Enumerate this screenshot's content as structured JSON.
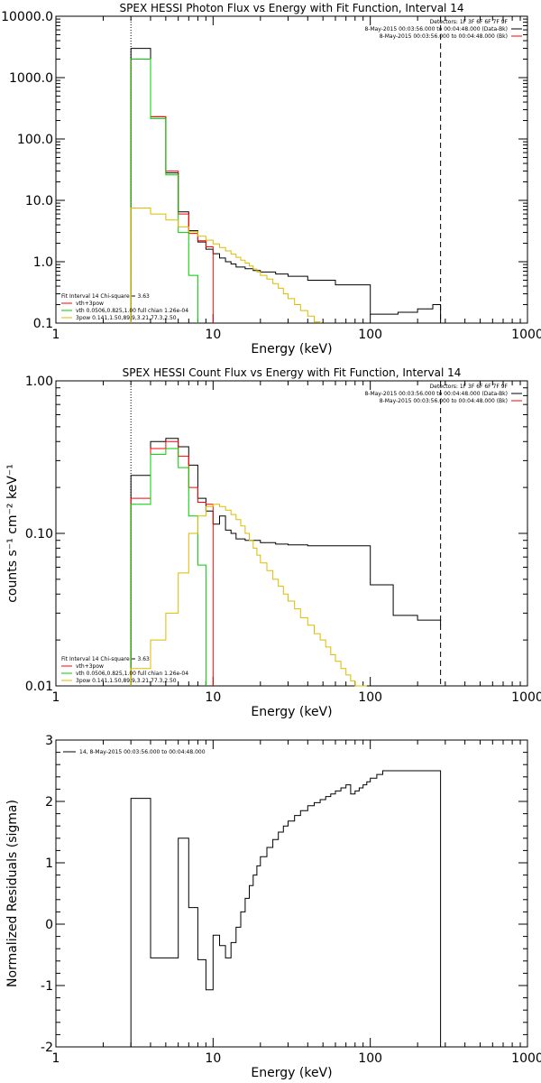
{
  "chart_data": [
    {
      "type": "line",
      "title": "SPEX HESSI Photon Flux vs Energy with Fit Function, Interval 14",
      "xlabel": "Energy (keV)",
      "ylabel": "",
      "xscale": "log",
      "yscale": "log",
      "xlim": [
        1,
        1000
      ],
      "ylim": [
        0.1,
        10000
      ],
      "xticks": [
        1,
        10,
        100,
        1000
      ],
      "xticklabels": [
        "1",
        "10",
        "100",
        "1000"
      ],
      "yticks": [
        0.1,
        1,
        10,
        100,
        1000,
        10000
      ],
      "yticklabels": [
        "0.1",
        "1.0",
        "10.0",
        "100.0",
        "1000.0",
        "10000.0"
      ],
      "legend_topright": [
        "Detectors: 1F 3F 6F 6F 7F 9F",
        "8-May-2015 00:03:56.000 to 00:04:48.000 (Data-Bk)",
        "8-May-2015 00:03:56.000 to 00:04:48.000 (Bk)"
      ],
      "legend_bottomleft": [
        "Fit Interval 14    Chi-square = 3.63",
        "vth+3pow",
        "vth 0.0506,0.825,1.00  full chian 1.26e-04",
        "3pow 0.141,1.50,89.9,3.21,77.3,2.50"
      ],
      "vlines": [
        3,
        280
      ],
      "series": [
        {
          "color": "#000000",
          "edges": [
            3,
            4,
            5,
            6,
            7,
            8,
            9,
            10,
            11,
            12,
            13,
            14,
            16,
            18,
            20,
            25,
            30,
            40,
            60,
            100,
            120,
            150,
            200,
            250,
            280
          ],
          "values": [
            3000,
            230,
            28,
            6.5,
            3.2,
            2.1,
            1.6,
            1.35,
            1.15,
            1.0,
            0.92,
            0.82,
            0.77,
            0.72,
            0.68,
            0.63,
            0.58,
            0.5,
            0.42,
            0.14,
            0.14,
            0.15,
            0.17,
            0.2
          ]
        },
        {
          "color": "#ff0000",
          "edges": [
            3,
            4,
            5,
            6,
            7,
            8,
            9,
            10
          ],
          "values": [
            2000,
            230,
            30,
            6,
            2.9,
            2.2,
            1.75
          ]
        },
        {
          "color": "#00cc00",
          "edges": [
            3,
            4,
            5,
            6,
            7,
            8
          ],
          "values": [
            2000,
            215,
            26,
            3,
            0.6
          ]
        },
        {
          "color": "#ddbb00",
          "edges": [
            3,
            4,
            5,
            6,
            7,
            8,
            9,
            10,
            11,
            12,
            13,
            14,
            15,
            16,
            17,
            18,
            19,
            20,
            22,
            24,
            26,
            28,
            30,
            33,
            36,
            40,
            44,
            48
          ],
          "values": [
            7.5,
            6,
            4.8,
            3.7,
            3.1,
            2.6,
            2.25,
            1.95,
            1.7,
            1.5,
            1.33,
            1.18,
            1.06,
            0.95,
            0.85,
            0.76,
            0.68,
            0.6,
            0.52,
            0.44,
            0.37,
            0.3,
            0.25,
            0.2,
            0.16,
            0.13,
            0.105
          ]
        }
      ]
    },
    {
      "type": "line",
      "title": "SPEX HESSI Count Flux vs Energy with Fit Function, Interval 14",
      "xlabel": "Energy (keV)",
      "ylabel": "counts s⁻¹ cm⁻² keV⁻¹",
      "xscale": "log",
      "yscale": "log",
      "xlim": [
        1,
        1000
      ],
      "ylim": [
        0.01,
        1
      ],
      "xticks": [
        1,
        10,
        100,
        1000
      ],
      "xticklabels": [
        "1",
        "10",
        "100",
        "1000"
      ],
      "yticks": [
        0.01,
        0.1,
        1
      ],
      "yticklabels": [
        "0.01",
        "0.10",
        "1.00"
      ],
      "legend_topright": [
        "Detectors: 1F 3F 6F 6F 7F 9F",
        "8-May-2015 00:03:56.000 to 00:04:48.000 (Data-Bk)",
        "8-May-2015 00:03:56.000 to 00:04:48.000 (Bk)"
      ],
      "legend_bottomleft": [
        "Fit Interval 14    Chi-square = 3.63",
        "vth+3pow",
        "vth 0.0506,0.825,1.00  full chian 1.26e-04",
        "3pow 0.141,1.50,89.9,3.21,77.3,2.50"
      ],
      "vlines": [
        3,
        280
      ],
      "series": [
        {
          "color": "#000000",
          "edges": [
            3,
            4,
            5,
            6,
            7,
            8,
            9,
            10,
            11,
            12,
            13,
            14,
            16,
            20,
            25,
            30,
            40,
            60,
            95,
            100,
            140,
            200,
            280
          ],
          "values": [
            0.24,
            0.4,
            0.42,
            0.37,
            0.28,
            0.17,
            0.14,
            0.115,
            0.13,
            0.105,
            0.1,
            0.092,
            0.09,
            0.087,
            0.085,
            0.084,
            0.083,
            0.083,
            0.083,
            0.046,
            0.029,
            0.027,
            0.025
          ]
        },
        {
          "color": "#ff0000",
          "edges": [
            3,
            4,
            5,
            6,
            7,
            8,
            9,
            10
          ],
          "values": [
            0.17,
            0.36,
            0.4,
            0.32,
            0.2,
            0.16,
            0.155
          ]
        },
        {
          "color": "#00cc00",
          "edges": [
            3,
            4,
            5,
            6,
            7,
            8,
            9
          ],
          "values": [
            0.155,
            0.33,
            0.36,
            0.27,
            0.13,
            0.062
          ]
        },
        {
          "color": "#ddbb00",
          "edges": [
            3,
            4,
            5,
            6,
            7,
            8,
            9,
            10,
            11,
            12,
            13,
            14,
            15,
            16,
            17,
            18,
            19,
            20,
            22,
            24,
            26,
            28,
            30,
            33,
            36,
            40,
            44,
            48,
            52,
            56,
            60,
            65,
            70,
            75,
            80,
            85,
            90,
            95
          ],
          "values": [
            0.013,
            0.02,
            0.03,
            0.055,
            0.1,
            0.13,
            0.15,
            0.155,
            0.15,
            0.142,
            0.133,
            0.123,
            0.112,
            0.1,
            0.09,
            0.08,
            0.072,
            0.064,
            0.057,
            0.05,
            0.045,
            0.04,
            0.036,
            0.032,
            0.028,
            0.025,
            0.022,
            0.02,
            0.018,
            0.016,
            0.0145,
            0.013,
            0.0118,
            0.0108,
            0.01,
            0.0095,
            0.009
          ]
        }
      ]
    },
    {
      "type": "line",
      "title": "",
      "xlabel": "Energy (keV)",
      "ylabel": "Normalized Residuals (sigma)",
      "xscale": "log",
      "yscale": "linear",
      "xlim": [
        1,
        1000
      ],
      "ylim": [
        -2,
        3
      ],
      "xticks": [
        1,
        10,
        100,
        1000
      ],
      "xticklabels": [
        "1",
        "10",
        "100",
        "1000"
      ],
      "yticks": [
        -2,
        -1,
        0,
        1,
        2,
        3
      ],
      "yticklabels": [
        "-2",
        "-1",
        "0",
        "1",
        "2",
        "3"
      ],
      "legend_topleft": [
        "14,  8-May-2015 00:03:56.000 to 00:04:48.000"
      ],
      "series": [
        {
          "color": "#000000",
          "edges": [
            3,
            4,
            5,
            6,
            7,
            8,
            9,
            10,
            11,
            12,
            13,
            14,
            15,
            16,
            17,
            18,
            19,
            20,
            22,
            24,
            26,
            28,
            30,
            33,
            36,
            40,
            44,
            48,
            52,
            56,
            60,
            65,
            70,
            75,
            80,
            85,
            90,
            95,
            100,
            110,
            120,
            130,
            140,
            150,
            160,
            170,
            180,
            280
          ],
          "values": [
            2.05,
            -0.55,
            -0.55,
            1.4,
            0.27,
            -0.58,
            -1.07,
            -0.18,
            -0.35,
            -0.55,
            -0.3,
            -0.05,
            0.2,
            0.42,
            0.63,
            0.8,
            0.95,
            1.1,
            1.25,
            1.38,
            1.5,
            1.6,
            1.68,
            1.77,
            1.85,
            1.93,
            1.98,
            2.03,
            2.08,
            2.12,
            2.17,
            2.22,
            2.27,
            2.12,
            2.17,
            2.22,
            2.27,
            2.32,
            2.38,
            2.44,
            2.5,
            2.5,
            2.5,
            2.5,
            2.5,
            2.5,
            2.5
          ]
        }
      ]
    }
  ]
}
